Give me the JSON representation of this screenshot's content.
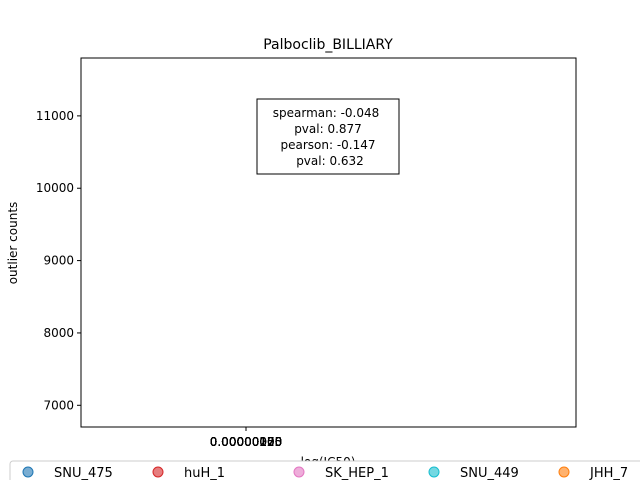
{
  "chart_data": {
    "type": "scatter",
    "title": "Palboclib_BILLIARY",
    "xlabel": "log(IC50)",
    "ylabel": "outlier counts",
    "xlim": [
      -1e-07,
      2e-07
    ],
    "ylim": [
      6700,
      11800
    ],
    "x_ticks": [
      "0.00000000",
      "0.00000025",
      "0.00000050",
      "0.00000075",
      "0.00000100",
      "0.00000125",
      "0.00000150",
      "0.00000175",
      "0.00000200"
    ],
    "y_ticks": [
      "7000",
      "8000",
      "9000",
      "10000",
      "11000"
    ],
    "grid": false,
    "stats_box": {
      "spearman": "spearman: -0.048",
      "spearman_pval": "pval: 0.877",
      "pearson": "pearson: -0.147",
      "pearson_pval": "pval: 0.632"
    },
    "legend_position": "bottom",
    "series": [
      {
        "name": "SNU_475",
        "color": "#1f77b4",
        "points": []
      },
      {
        "name": "huH_1",
        "color": "#d62728",
        "points": []
      },
      {
        "name": "SK_HEP_1",
        "color": "#e377c2",
        "points": []
      },
      {
        "name": "SNU_449",
        "color": "#17becf",
        "points": []
      },
      {
        "name": "JHH_7",
        "color": "#ff7f0e",
        "points": []
      }
    ]
  }
}
